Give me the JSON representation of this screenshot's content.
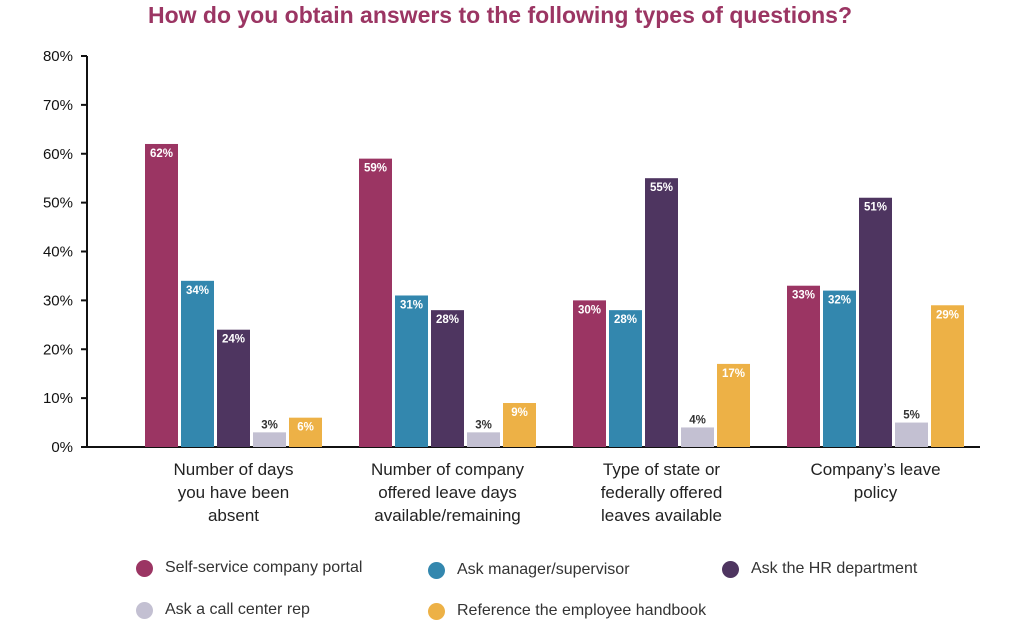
{
  "chart_data": {
    "type": "bar",
    "title": "How do you obtain answers to the following types of questions?",
    "xlabel": "",
    "ylabel": "",
    "ylim": [
      0,
      80
    ],
    "yticks": [
      "0%",
      "10%",
      "20%",
      "30%",
      "40%",
      "50%",
      "60%",
      "70%",
      "80%"
    ],
    "categories": [
      [
        "Number of days",
        "you have been",
        "absent"
      ],
      [
        "Number of company",
        "offered leave days",
        "available/remaining"
      ],
      [
        "Type of state or",
        "federally offered",
        "leaves available"
      ],
      [
        "Company’s leave",
        "policy"
      ]
    ],
    "series": [
      {
        "name": "Self-service company portal",
        "color": "#9b3563",
        "values": [
          62,
          59,
          30,
          33
        ],
        "labels": [
          "62%",
          "59%",
          "30%",
          "33%"
        ]
      },
      {
        "name": "Ask manager/supervisor",
        "color": "#3387ae",
        "values": [
          34,
          31,
          28,
          32
        ],
        "labels": [
          "34%",
          "31%",
          "28%",
          "32%"
        ]
      },
      {
        "name": "Ask the HR department",
        "color": "#4e3560",
        "values": [
          24,
          28,
          55,
          51
        ],
        "labels": [
          "24%",
          "28%",
          "55%",
          "51%"
        ]
      },
      {
        "name": "Ask a call center rep",
        "color": "#c3c0d2",
        "values": [
          3,
          3,
          4,
          5
        ],
        "labels": [
          "3%",
          "3%",
          "4%",
          "5%"
        ]
      },
      {
        "name": "Reference the employee handbook",
        "color": "#edb146",
        "values": [
          6,
          9,
          17,
          29
        ],
        "labels": [
          "6%",
          "9%",
          "17%",
          "29%"
        ]
      }
    ],
    "legend_position": "bottom",
    "grid": false
  }
}
